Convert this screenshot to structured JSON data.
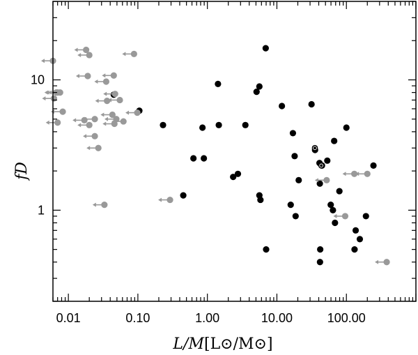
{
  "chart_data": {
    "type": "scatter",
    "title": "",
    "xlabel_main": "L/M",
    "xlabel_unit": "[L⊙/M⊙]",
    "ylabel": "fD",
    "xscale": "log",
    "yscale": "log",
    "xlim": [
      0.006,
      1000
    ],
    "ylim": [
      0.2,
      40
    ],
    "grid": false,
    "xticks": [
      {
        "value": 0.01,
        "label": "0.01"
      },
      {
        "value": 0.1,
        "label": "0.10"
      },
      {
        "value": 1,
        "label": "1.00"
      },
      {
        "value": 10,
        "label": "10.00"
      },
      {
        "value": 100,
        "label": "100.00"
      }
    ],
    "yticks": [
      {
        "value": 1,
        "label": "1"
      },
      {
        "value": 10,
        "label": "10"
      }
    ],
    "series": [
      {
        "color": "#000000",
        "marker": "filled-circle",
        "upper_limit": false,
        "points": [
          [
            0.045,
            7.7
          ],
          [
            0.105,
            5.8
          ],
          [
            0.23,
            4.5
          ],
          [
            0.45,
            1.3
          ],
          [
            0.63,
            2.5
          ],
          [
            0.85,
            4.3
          ],
          [
            0.89,
            2.5
          ],
          [
            1.42,
            9.3
          ],
          [
            1.46,
            4.5
          ],
          [
            2.35,
            1.8
          ],
          [
            2.75,
            1.9
          ],
          [
            3.52,
            4.5
          ],
          [
            5.1,
            8.1
          ],
          [
            5.6,
            8.9
          ],
          [
            5.6,
            1.3
          ],
          [
            5.8,
            1.2
          ],
          [
            6.9,
            17.5
          ],
          [
            7.0,
            0.5
          ],
          [
            11.8,
            6.3
          ],
          [
            15.8,
            1.1
          ],
          [
            17.0,
            3.9
          ],
          [
            18.0,
            2.6
          ],
          [
            18.6,
            0.9
          ],
          [
            20.6,
            1.7
          ],
          [
            31.5,
            6.5
          ],
          [
            35.4,
            2.9
          ],
          [
            41.0,
            2.3
          ],
          [
            41.5,
            1.6
          ],
          [
            41.7,
            0.4
          ],
          [
            42.0,
            0.5
          ],
          [
            44.5,
            2.2
          ],
          [
            53.1,
            2.4
          ],
          [
            59.5,
            1.1
          ],
          [
            64.0,
            1.0
          ],
          [
            66.7,
            3.4
          ],
          [
            68.5,
            0.8
          ],
          [
            79.3,
            1.4
          ],
          [
            100.0,
            4.3
          ],
          [
            131.0,
            0.5
          ],
          [
            136.0,
            0.7
          ],
          [
            156.0,
            0.6
          ],
          [
            191.0,
            0.9
          ],
          [
            245.0,
            2.2
          ]
        ]
      },
      {
        "color": "#999999",
        "marker": "filled-circle",
        "upper_limit": true,
        "points": [
          [
            0.006,
            14.0
          ],
          [
            0.007,
            8.0
          ],
          [
            0.0076,
            8.0
          ],
          [
            0.0067,
            8.0
          ],
          [
            0.0062,
            7.2
          ],
          [
            0.0083,
            5.7
          ],
          [
            0.007,
            4.7
          ],
          [
            0.018,
            17.0
          ],
          [
            0.02,
            15.5
          ],
          [
            0.088,
            15.8
          ],
          [
            0.019,
            10.7
          ],
          [
            0.045,
            10.8
          ],
          [
            0.035,
            9.7
          ],
          [
            0.047,
            7.8
          ],
          [
            0.036,
            6.9
          ],
          [
            0.055,
            7.0
          ],
          [
            0.017,
            4.9
          ],
          [
            0.024,
            5.0
          ],
          [
            0.043,
            5.4
          ],
          [
            0.02,
            4.5
          ],
          [
            0.049,
            5.0
          ],
          [
            0.046,
            4.6
          ],
          [
            0.062,
            4.8
          ],
          [
            0.098,
            5.6
          ],
          [
            0.024,
            3.7
          ],
          [
            0.027,
            3.0
          ],
          [
            0.033,
            1.1
          ],
          [
            0.29,
            1.2
          ],
          [
            52.0,
            1.7
          ],
          [
            96.0,
            0.9
          ],
          [
            130.0,
            1.9
          ],
          [
            200.0,
            1.9
          ],
          [
            380.0,
            0.4
          ]
        ]
      },
      {
        "color": "#ffffff",
        "marker": "open-circle",
        "upper_limit": false,
        "points": [
          [
            35.2,
            3.0
          ],
          [
            43.5,
            2.2
          ]
        ]
      }
    ]
  }
}
